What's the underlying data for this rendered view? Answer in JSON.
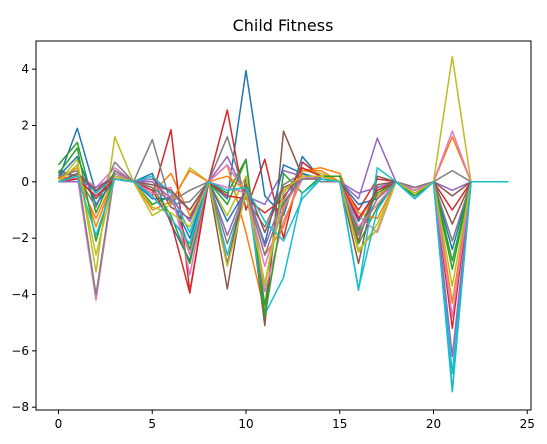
{
  "chart_data": {
    "type": "line",
    "title": "Child Fitness",
    "xlabel": "",
    "ylabel": "",
    "xlim": [
      -1.2,
      25.2
    ],
    "ylim": [
      -8.1,
      5.0
    ],
    "xticks": [
      0,
      5,
      10,
      15,
      20,
      25
    ],
    "yticks": [
      -8,
      -6,
      -4,
      -2,
      0,
      2,
      4
    ],
    "grid": false,
    "x": [
      0,
      1,
      2,
      3,
      4,
      5,
      6,
      7,
      8,
      9,
      10,
      11,
      12,
      13,
      14,
      15,
      16,
      17,
      18,
      19,
      20,
      21,
      22,
      23,
      24
    ],
    "series": [
      {
        "color": "#1f77b4",
        "values": [
          0.1,
          1.9,
          -0.4,
          0.3,
          0.0,
          0.3,
          -1.5,
          -2.8,
          0.0,
          -0.6,
          3.95,
          -0.5,
          -1.2,
          0.9,
          0.1,
          0.0,
          -1.4,
          -0.3,
          0.0,
          -0.6,
          0.0,
          -7.4,
          0.0,
          0.0,
          0.0
        ]
      },
      {
        "color": "#ff7f0e",
        "values": [
          0.2,
          0.1,
          -1.3,
          0.2,
          0.0,
          -0.4,
          0.3,
          -1.2,
          0.0,
          0.6,
          -1.8,
          -4.6,
          -1.0,
          0.4,
          0.5,
          0.3,
          -1.3,
          -0.5,
          0.0,
          -0.3,
          0.0,
          1.6,
          0.0,
          0.0,
          0.0
        ]
      },
      {
        "color": "#2ca02c",
        "values": [
          0.6,
          1.4,
          -1.1,
          0.4,
          0.0,
          -0.8,
          -0.5,
          -2.4,
          0.0,
          -0.4,
          0.8,
          -4.4,
          0.3,
          -0.4,
          0.2,
          0.2,
          -2.2,
          -0.9,
          0.0,
          -0.5,
          0.0,
          -3.1,
          0.0,
          0.0,
          0.0
        ]
      },
      {
        "color": "#d62728",
        "values": [
          0.0,
          0.2,
          -0.3,
          0.1,
          0.0,
          -0.5,
          1.85,
          -3.9,
          0.0,
          2.55,
          -1.0,
          0.8,
          -2.0,
          0.7,
          0.2,
          0.0,
          -1.0,
          0.1,
          0.0,
          -0.4,
          0.0,
          -1.0,
          0.0,
          0.0,
          0.0
        ]
      },
      {
        "color": "#9467bd",
        "values": [
          0.0,
          0.1,
          -0.2,
          0.2,
          0.0,
          0.1,
          -0.4,
          -1.0,
          0.0,
          0.9,
          -0.5,
          -0.8,
          0.4,
          0.2,
          0.1,
          0.0,
          -0.6,
          1.55,
          0.0,
          -0.2,
          0.0,
          -0.3,
          0.0,
          0.0,
          0.0
        ]
      },
      {
        "color": "#8c564b",
        "values": [
          0.4,
          0.2,
          -0.6,
          0.1,
          0.0,
          0.2,
          -0.9,
          -1.3,
          0.0,
          -3.8,
          0.2,
          -5.1,
          1.8,
          0.2,
          0.1,
          0.0,
          -2.9,
          0.2,
          0.0,
          -0.4,
          0.0,
          -0.5,
          0.0,
          0.0,
          0.0
        ]
      },
      {
        "color": "#e377c2",
        "values": [
          0.0,
          0.3,
          -0.2,
          0.5,
          0.0,
          -0.3,
          -0.2,
          -3.3,
          0.0,
          0.6,
          -0.4,
          -3.9,
          -1.4,
          0.1,
          0.2,
          0.0,
          -1.2,
          -1.8,
          0.0,
          -0.5,
          0.0,
          1.8,
          0.0,
          0.0,
          0.0
        ]
      },
      {
        "color": "#7f7f7f",
        "values": [
          0.3,
          0.2,
          -0.9,
          0.7,
          0.0,
          1.5,
          -0.8,
          -0.7,
          0.0,
          1.6,
          -0.6,
          -1.6,
          -0.1,
          0.3,
          0.0,
          0.0,
          -1.8,
          -0.2,
          0.0,
          -0.3,
          0.0,
          0.4,
          0.0,
          0.0,
          0.0
        ]
      },
      {
        "color": "#bcbd22",
        "values": [
          0.0,
          0.8,
          -3.2,
          1.6,
          0.0,
          -1.2,
          -0.8,
          0.5,
          0.0,
          -1.2,
          0.2,
          -3.7,
          -0.4,
          0.4,
          0.3,
          0.0,
          -2.5,
          -1.5,
          0.0,
          -0.4,
          0.0,
          4.45,
          0.0,
          0.0,
          0.0
        ]
      },
      {
        "color": "#17becf",
        "values": [
          0.0,
          0.3,
          -0.4,
          0.2,
          0.0,
          0.2,
          -0.4,
          -1.8,
          0.0,
          -2.6,
          -0.1,
          -4.7,
          -3.4,
          -0.4,
          0.1,
          0.0,
          -3.85,
          0.5,
          0.0,
          -0.6,
          0.0,
          -6.8,
          0.0,
          0.0,
          0.0
        ]
      },
      {
        "color": "#1f77b4",
        "values": [
          0.2,
          0.9,
          -0.8,
          0.1,
          0.0,
          -0.6,
          -0.6,
          -2.0,
          0.0,
          -1.4,
          -0.3,
          -2.2,
          0.6,
          0.3,
          0.1,
          0.0,
          -0.8,
          -0.6,
          0.0,
          -0.2,
          0.0,
          -2.4,
          0.0,
          0.0,
          0.0
        ]
      },
      {
        "color": "#ff7f0e",
        "values": [
          0.1,
          0.5,
          -1.6,
          0.2,
          0.0,
          -1.0,
          -0.7,
          0.4,
          0.0,
          0.2,
          -0.3,
          -2.6,
          -1.6,
          0.4,
          0.4,
          0.0,
          -1.1,
          -1.3,
          0.0,
          -0.3,
          0.0,
          -4.3,
          0.0,
          0.0,
          0.0
        ]
      },
      {
        "color": "#2ca02c",
        "values": [
          0.3,
          1.2,
          -2.1,
          0.3,
          0.0,
          -0.2,
          -1.2,
          -2.9,
          0.0,
          -0.8,
          0.8,
          -4.8,
          -0.8,
          0.2,
          0.2,
          0.2,
          -1.7,
          -0.4,
          0.0,
          -0.5,
          0.0,
          -2.8,
          0.0,
          0.0,
          0.0
        ]
      },
      {
        "color": "#d62728",
        "values": [
          0.0,
          0.1,
          -0.5,
          0.1,
          0.0,
          -0.3,
          -1.4,
          -3.95,
          0.0,
          -0.5,
          -0.6,
          -1.1,
          -0.6,
          0.5,
          0.2,
          0.0,
          -1.3,
          -0.3,
          0.0,
          -0.2,
          0.0,
          -5.2,
          0.0,
          0.0,
          0.0
        ]
      },
      {
        "color": "#9467bd",
        "values": [
          0.0,
          0.0,
          -0.2,
          0.1,
          0.0,
          0.0,
          -0.6,
          -1.4,
          0.0,
          -1.9,
          -0.2,
          -2.3,
          -0.5,
          0.2,
          0.1,
          0.0,
          -0.4,
          -0.2,
          0.0,
          -0.2,
          0.0,
          -6.2,
          0.0,
          0.0,
          0.0
        ]
      },
      {
        "color": "#8c564b",
        "values": [
          0.0,
          0.3,
          -0.3,
          0.2,
          0.0,
          -0.1,
          -0.3,
          -1.0,
          0.0,
          -2.9,
          -0.1,
          -1.8,
          -0.2,
          0.1,
          0.1,
          0.0,
          -2.1,
          -0.1,
          0.0,
          -0.3,
          0.0,
          -1.5,
          0.0,
          0.0,
          0.0
        ]
      },
      {
        "color": "#e377c2",
        "values": [
          0.0,
          0.2,
          -4.2,
          0.3,
          0.0,
          -0.4,
          -0.5,
          -2.6,
          0.0,
          -0.2,
          -0.4,
          -3.0,
          -0.9,
          0.2,
          0.1,
          0.0,
          -1.6,
          -0.8,
          0.0,
          -0.3,
          0.0,
          -4.8,
          0.0,
          0.0,
          0.0
        ]
      },
      {
        "color": "#7f7f7f",
        "values": [
          0.2,
          0.4,
          -4.0,
          0.4,
          0.0,
          -0.2,
          -0.7,
          -0.3,
          0.0,
          -2.2,
          -0.3,
          -2.6,
          -0.7,
          0.1,
          0.1,
          0.0,
          -1.9,
          -0.6,
          0.0,
          -0.2,
          0.0,
          -2.1,
          0.0,
          0.0,
          0.0
        ]
      },
      {
        "color": "#bcbd22",
        "values": [
          0.0,
          0.6,
          -2.6,
          0.2,
          0.0,
          -0.9,
          -1.1,
          -1.6,
          0.0,
          -3.0,
          -0.4,
          -3.6,
          -0.3,
          0.2,
          0.2,
          0.0,
          -2.4,
          -1.7,
          0.0,
          -0.4,
          0.0,
          -3.7,
          0.0,
          0.0,
          0.0
        ]
      },
      {
        "color": "#17becf",
        "values": [
          0.0,
          0.2,
          -1.9,
          0.1,
          0.0,
          -0.5,
          -1.3,
          -2.2,
          0.0,
          -0.3,
          -0.2,
          -1.4,
          -2.1,
          -0.6,
          0.1,
          0.0,
          -3.8,
          -1.0,
          0.0,
          -0.6,
          0.0,
          -7.45,
          0.0,
          0.0,
          0.0
        ]
      }
    ]
  }
}
